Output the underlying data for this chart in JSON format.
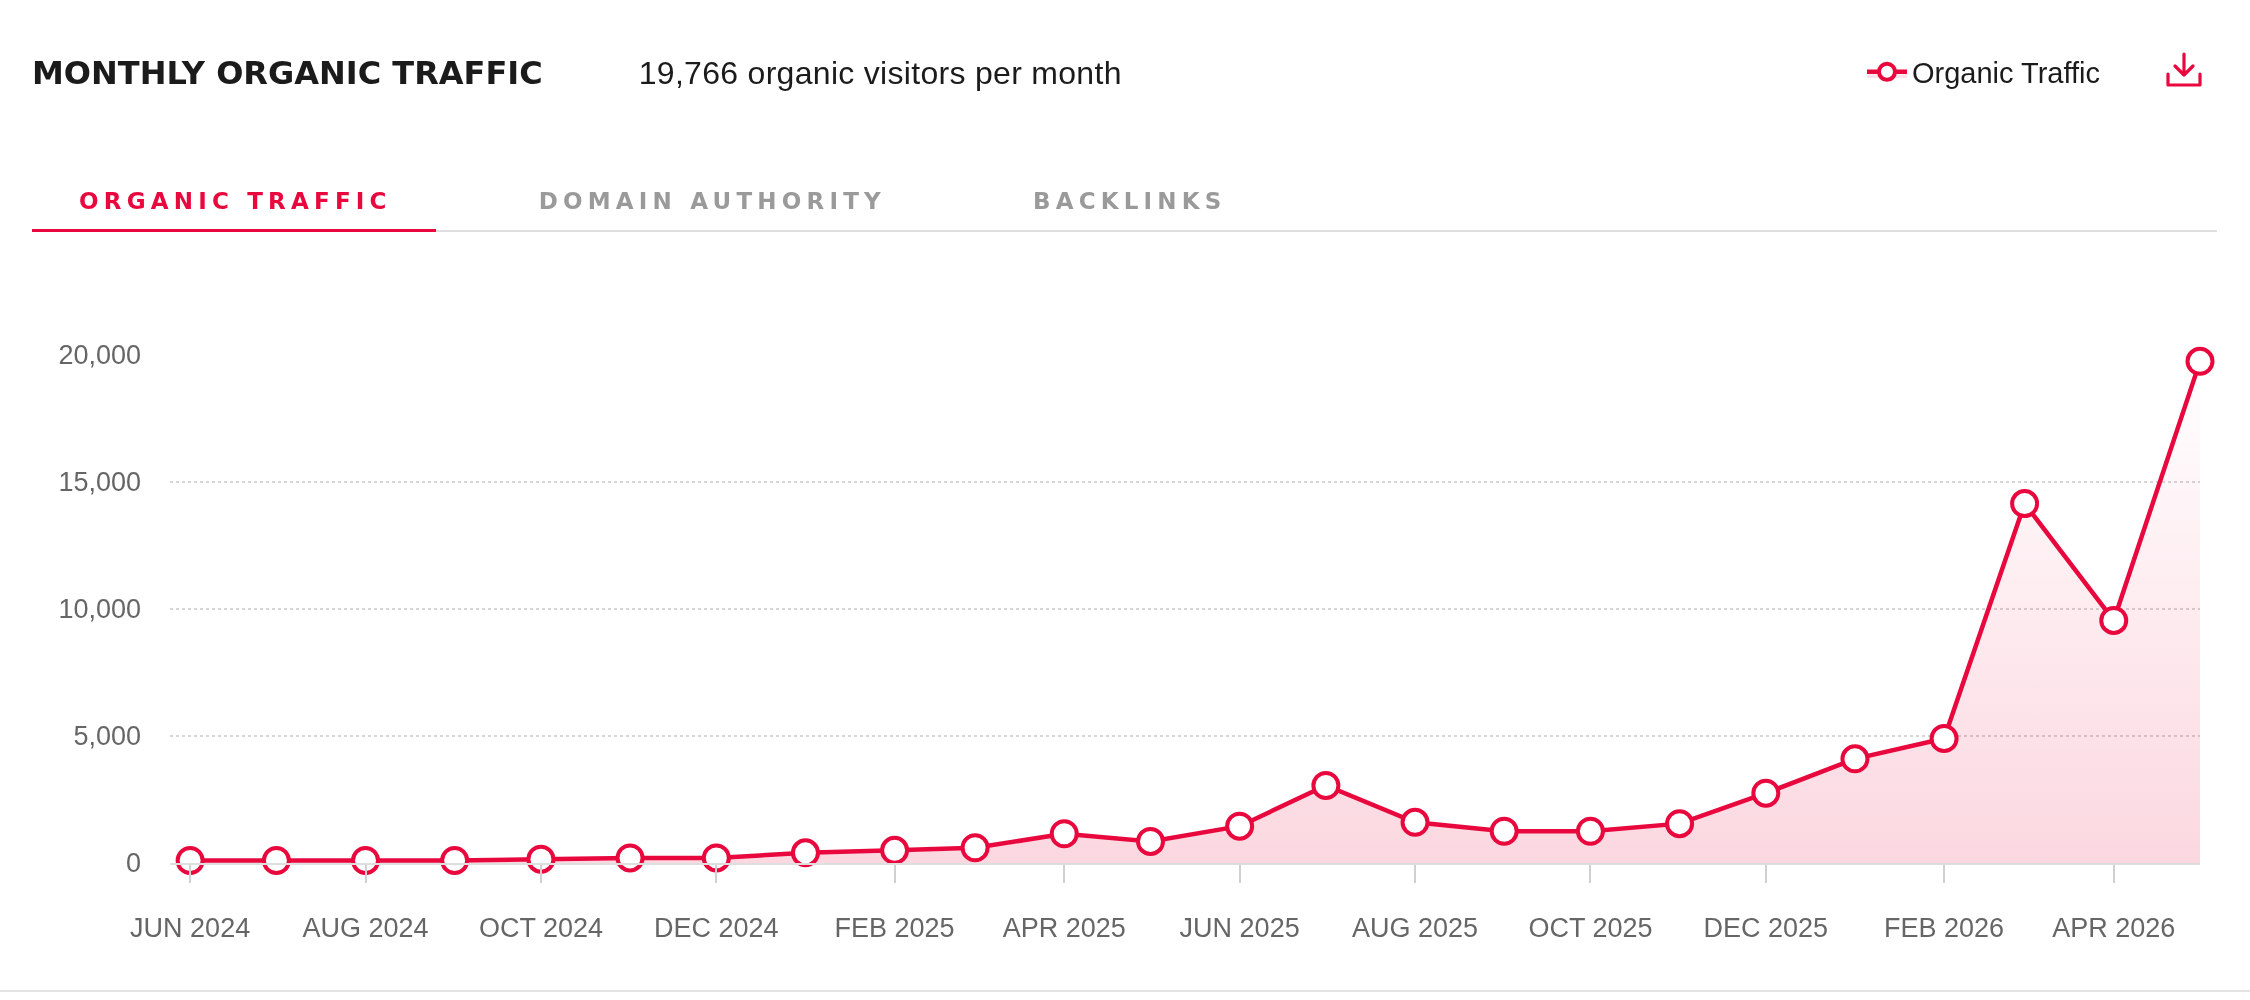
{
  "chart_data": {
    "type": "area",
    "title": "MONTHLY ORGANIC TRAFFIC",
    "subtitle": "19,766 organic visitors per month",
    "annotations": [
      "ORGANIC TRAFFIC",
      "DOMAIN AUTHORITY",
      "BACKLINKS"
    ],
    "x": [
      "2024-06",
      "2024-07",
      "2024-08",
      "2024-09",
      "2024-10",
      "2024-11",
      "2024-12",
      "2025-01",
      "2025-02",
      "2025-03",
      "2025-04",
      "2025-05",
      "2025-06",
      "2025-07",
      "2025-08",
      "2025-09",
      "2025-10",
      "2025-11",
      "2025-12",
      "2026-01",
      "2026-02",
      "2026-03",
      "2026-04",
      "2026-05"
    ],
    "series": [
      {
        "name": "Organic Traffic",
        "color": "#e8083e",
        "values": [
          100,
          100,
          100,
          100,
          150,
          200,
          200,
          400,
          500,
          600,
          1150,
          850,
          1450,
          3050,
          1600,
          1250,
          1250,
          1550,
          2750,
          4100,
          4900,
          14150,
          9550,
          19750
        ]
      }
    ],
    "xlim": [
      "2024-05-25",
      "2026-05-01"
    ],
    "xticks": [
      {
        "value": "2024-06",
        "label": "JUN 2024"
      },
      {
        "value": "2024-08",
        "label": "AUG 2024"
      },
      {
        "value": "2024-10",
        "label": "OCT 2024"
      },
      {
        "value": "2024-12",
        "label": "DEC 2024"
      },
      {
        "value": "2025-02",
        "label": "FEB 2025"
      },
      {
        "value": "2025-04",
        "label": "APR 2025"
      },
      {
        "value": "2025-06",
        "label": "JUN 2025"
      },
      {
        "value": "2025-08",
        "label": "AUG 2025"
      },
      {
        "value": "2025-10",
        "label": "OCT 2025"
      },
      {
        "value": "2025-12",
        "label": "DEC 2025"
      },
      {
        "value": "2026-02",
        "label": "FEB 2026"
      },
      {
        "value": "2026-04",
        "label": "APR 2026"
      }
    ],
    "ylim": [
      0,
      20000
    ],
    "yticks": [
      0,
      {
        "value": 5000,
        "label": "5,000"
      },
      {
        "value": 10000,
        "label": "10,000"
      },
      {
        "value": 15000,
        "label": "15,000"
      },
      {
        "value": 20000,
        "label": "20,000"
      }
    ],
    "grid": "y",
    "legend": "top right",
    "marker": "circle"
  }
}
